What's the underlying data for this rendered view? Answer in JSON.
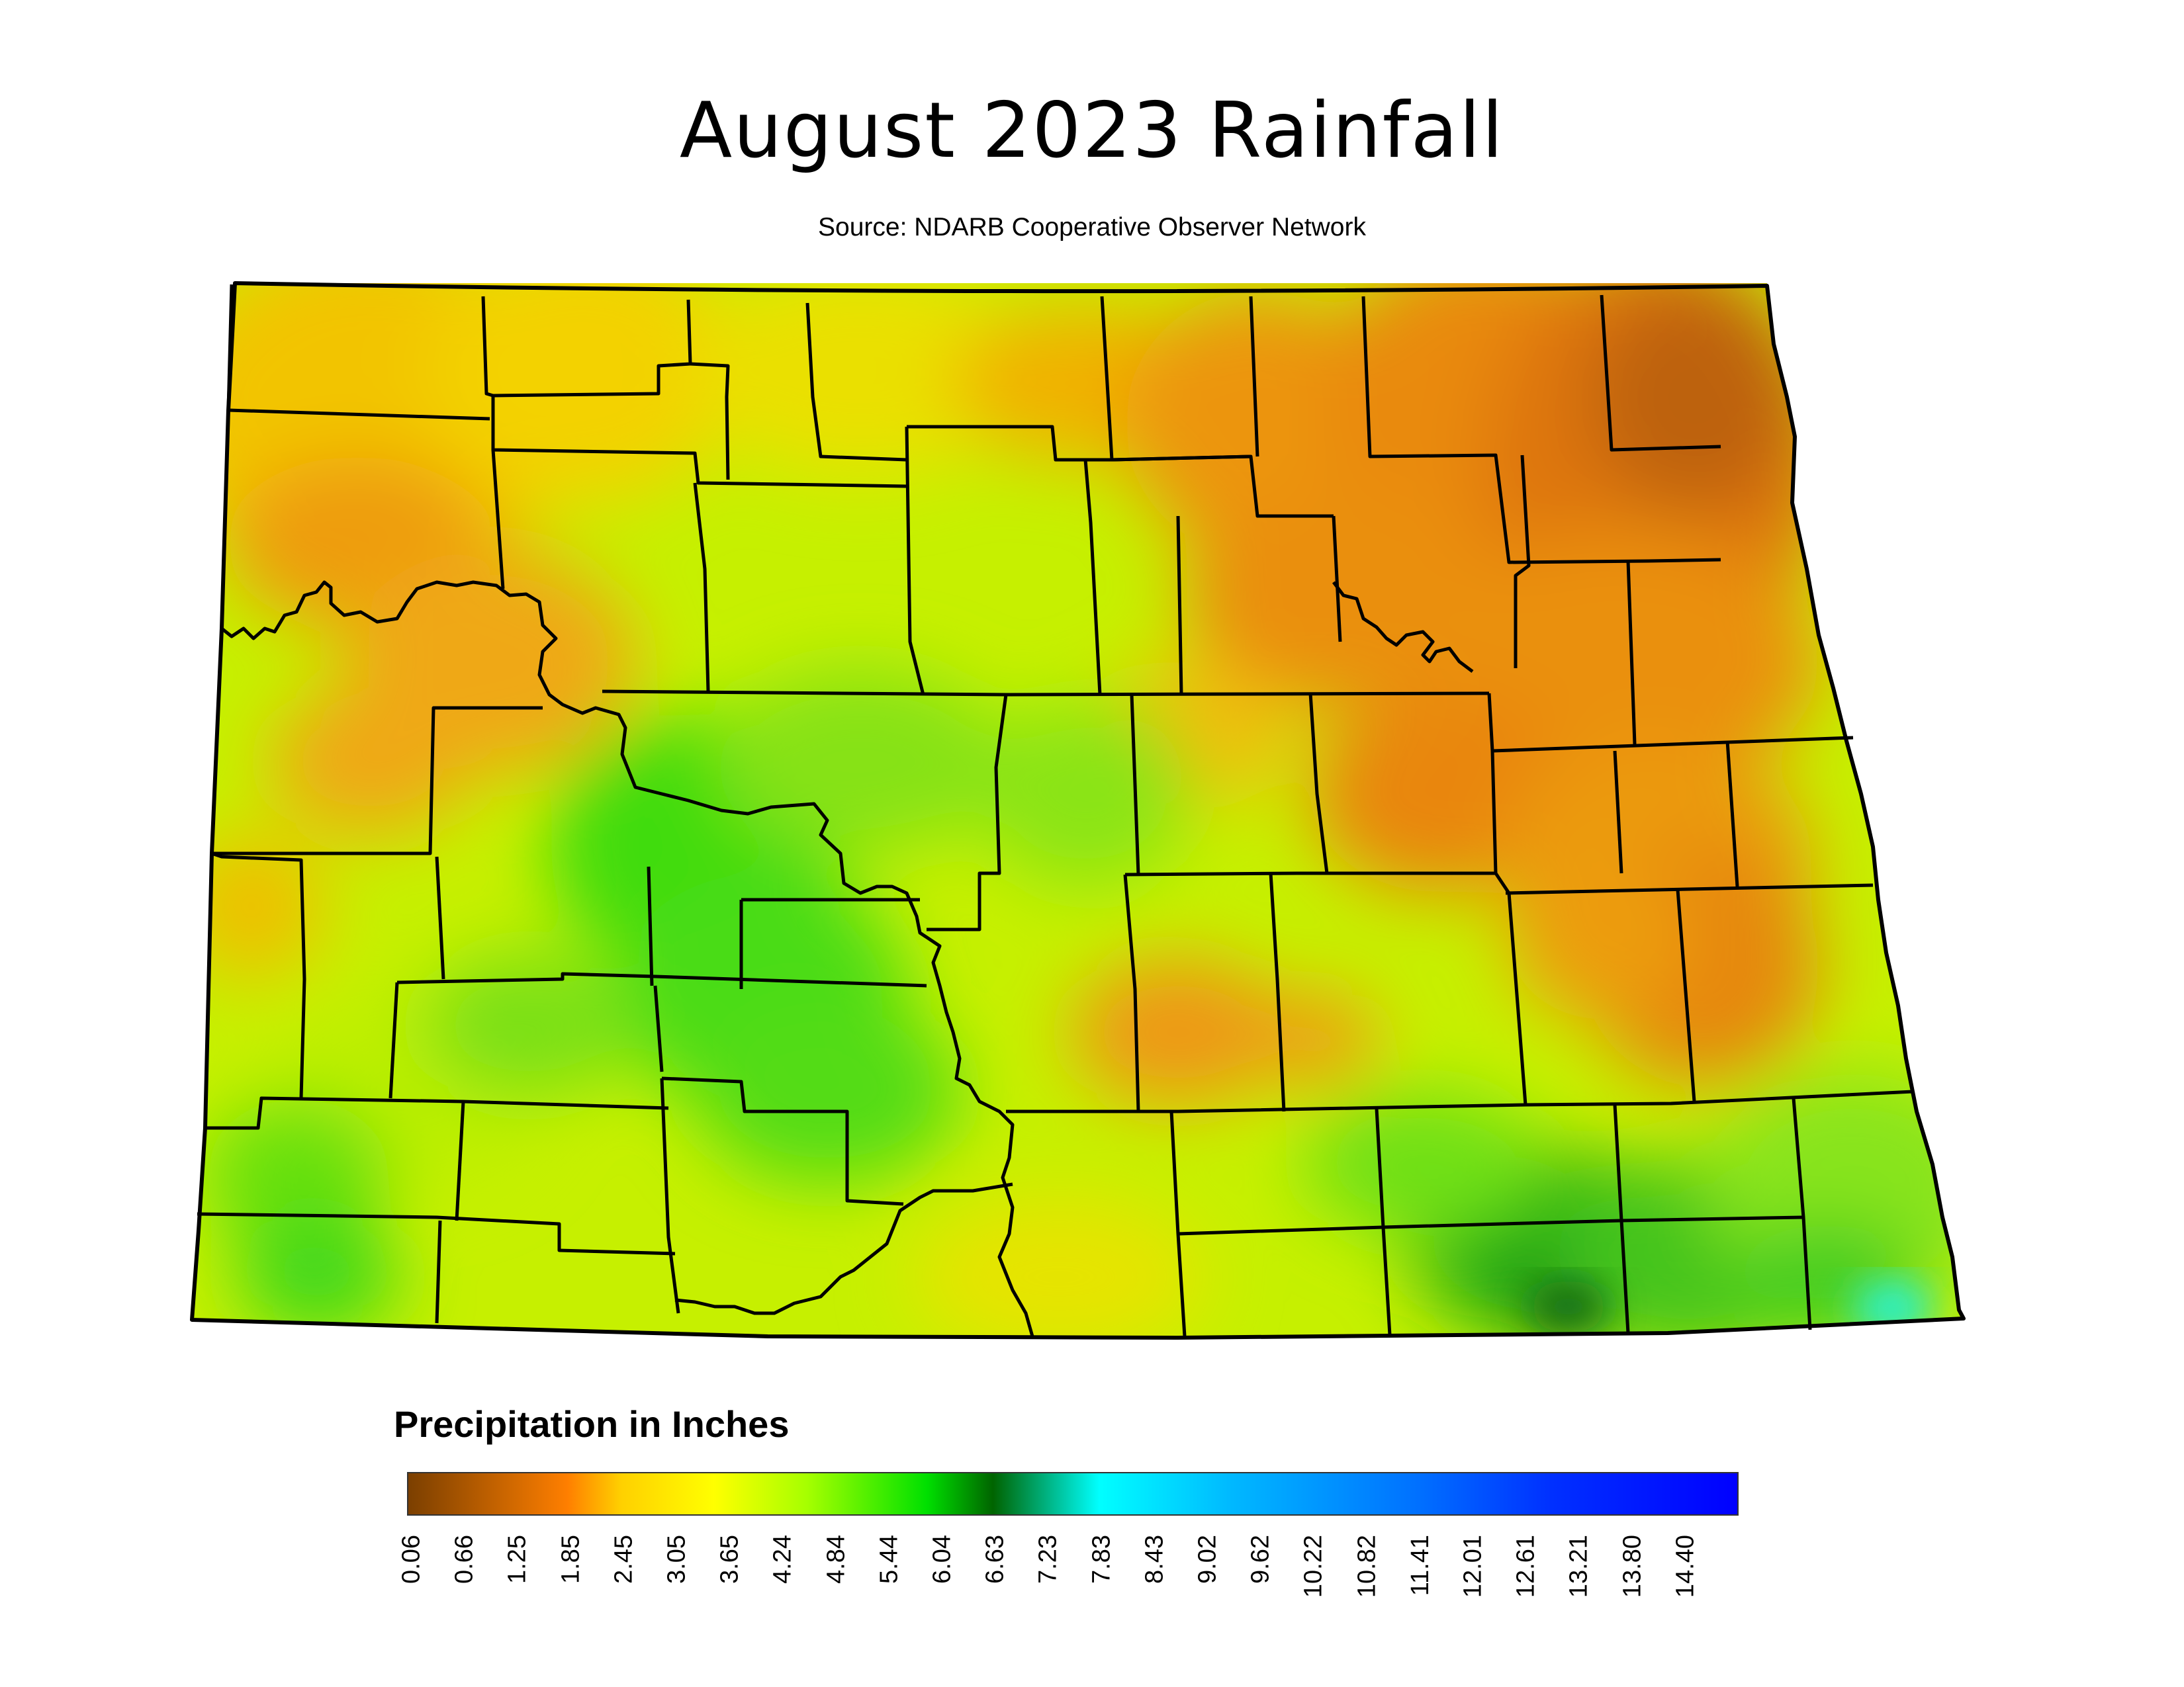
{
  "title": "August 2023 Rainfall",
  "subtitle": "Source: NDARB Cooperative Observer Network",
  "legend": {
    "title": "Precipitation in Inches",
    "ticks": [
      "0.06",
      "0.66",
      "1.25",
      "1.85",
      "2.45",
      "3.05",
      "3.65",
      "4.24",
      "4.84",
      "5.44",
      "6.04",
      "6.63",
      "7.23",
      "7.83",
      "8.43",
      "9.02",
      "9.62",
      "10.22",
      "10.82",
      "11.41",
      "12.01",
      "12.61",
      "13.21",
      "13.80",
      "14.40"
    ],
    "colors": [
      "#7b3f00",
      "#ff7f00",
      "#ffff00",
      "#a6ff00",
      "#00e000",
      "#006400",
      "#00ffff",
      "#0070ff",
      "#0000ff"
    ]
  },
  "map": {
    "region": "North Dakota",
    "colors": {
      "dry": "#e57c0a",
      "moderate": "#f5e300",
      "wet": "#38dc00",
      "very_wet": "#0a7f12",
      "wettest": "#2cf2d8",
      "county_border": "#000000"
    }
  }
}
